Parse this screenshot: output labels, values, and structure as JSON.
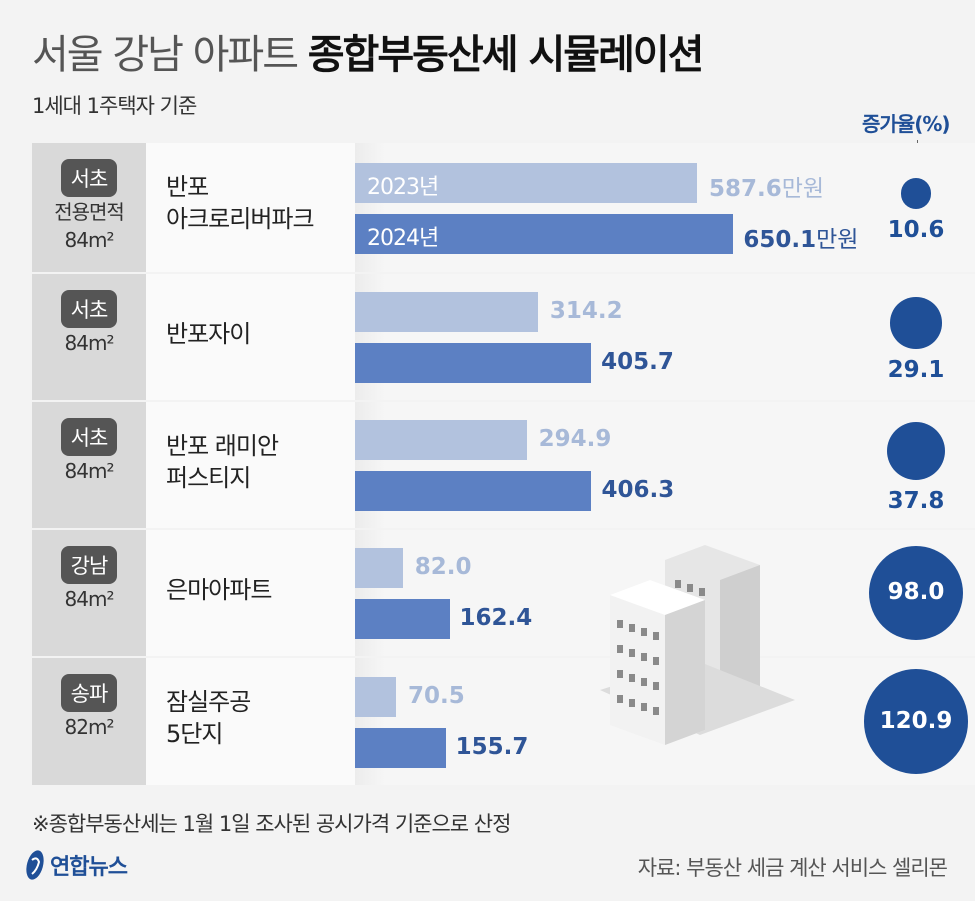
{
  "header": {
    "title_light": "서울 강남 아파트",
    "title_bold": "종합부동산세 시뮬레이션",
    "subtitle": "1세대 1주택자 기준",
    "rate_header": "증가율(%)"
  },
  "chart_data": {
    "type": "bar",
    "orientation": "horizontal",
    "series": [
      {
        "name": "2023년",
        "color": "#b2c2de"
      },
      {
        "name": "2024년",
        "color": "#5c80c3"
      }
    ],
    "unit": "만원",
    "rows": [
      {
        "region": "서초",
        "area_label": "전용면적",
        "area": "84m²",
        "name": [
          "반포",
          "아크로리버파크"
        ],
        "v2023": "587.6",
        "v2024": "650.1",
        "rate": "10.6"
      },
      {
        "region": "서초",
        "area": "84m²",
        "name": [
          "반포자이"
        ],
        "v2023": "314.2",
        "v2024": "405.7",
        "rate": "29.1"
      },
      {
        "region": "서초",
        "area": "84m²",
        "name": [
          "반포 래미안",
          "퍼스티지"
        ],
        "v2023": "294.9",
        "v2024": "406.3",
        "rate": "37.8"
      },
      {
        "region": "강남",
        "area": "84m²",
        "name": [
          "은마아파트"
        ],
        "v2023": "82.0",
        "v2024": "162.4",
        "rate": "98.0"
      },
      {
        "region": "송파",
        "area": "82m²",
        "name": [
          "잠실주공",
          "5단지"
        ],
        "v2023": "70.5",
        "v2024": "155.7",
        "rate": "120.9"
      }
    ],
    "rate_color": "#1f4f97"
  },
  "footer": {
    "note": "※종합부동산세는 1월 1일 조사된 공시가격 기준으로 산정",
    "logo": "연합뉴스",
    "source": "자료: 부동산 세금 계산 서비스 셀리몬"
  }
}
